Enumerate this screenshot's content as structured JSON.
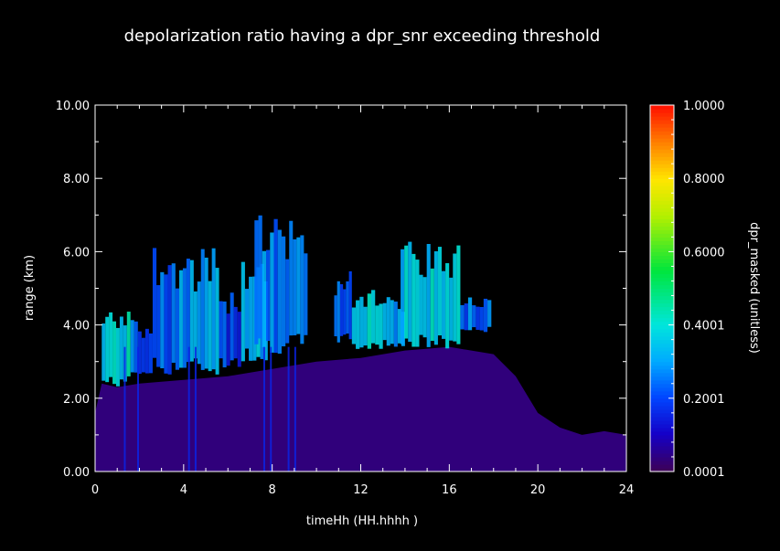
{
  "chart_data": {
    "type": "heatmap",
    "title": "depolarization ratio having a dpr_snr exceeding threshold",
    "xlabel": "timeHh (HH.hhhh )",
    "ylabel": "range (km)",
    "xlim": [
      0,
      24
    ],
    "ylim": [
      0,
      10
    ],
    "x_ticks": [
      "0",
      "4",
      "8",
      "12",
      "16",
      "20",
      "24"
    ],
    "y_ticks": [
      "0.00",
      "2.00",
      "4.00",
      "6.00",
      "8.00",
      "10.00"
    ],
    "colorbar": {
      "label": "dpr_masked (unitless)",
      "range": [
        0.0001,
        1.0
      ],
      "ticks": [
        "0.0001",
        "0.2001",
        "0.4001",
        "0.6000",
        "0.8000",
        "1.0000"
      ],
      "colormap": "rainbow (purple-blue-cyan-green-yellow-red)"
    },
    "background_layer": {
      "description": "low-depolarization boundary layer",
      "value": 0.03,
      "top_km": [
        [
          0,
          1.6
        ],
        [
          0.3,
          2.4
        ],
        [
          1,
          2.3
        ],
        [
          2,
          2.4
        ],
        [
          4,
          2.5
        ],
        [
          6,
          2.6
        ],
        [
          8,
          2.8
        ],
        [
          10,
          3.0
        ],
        [
          12,
          3.1
        ],
        [
          14,
          3.3
        ],
        [
          16,
          3.4
        ],
        [
          18,
          3.2
        ],
        [
          19,
          2.6
        ],
        [
          20,
          1.6
        ],
        [
          21,
          1.2
        ],
        [
          22,
          1.0
        ],
        [
          23,
          1.1
        ],
        [
          24,
          1.0
        ]
      ]
    },
    "cloud_features": [
      {
        "x_start": 0.3,
        "x_end": 1.6,
        "y_bottom": 2.3,
        "y_top": 4.4,
        "value": 0.38
      },
      {
        "x_start": 1.6,
        "x_end": 2.6,
        "y_bottom": 2.6,
        "y_top": 4.2,
        "value": 0.22
      },
      {
        "x_start": 2.6,
        "x_end": 3.8,
        "y_bottom": 2.6,
        "y_top": 6.2,
        "value": 0.24
      },
      {
        "x_start": 3.8,
        "x_end": 5.6,
        "y_bottom": 2.6,
        "y_top": 6.1,
        "value": 0.28
      },
      {
        "x_start": 5.6,
        "x_end": 6.6,
        "y_bottom": 2.8,
        "y_top": 5.0,
        "value": 0.2
      },
      {
        "x_start": 6.6,
        "x_end": 7.8,
        "y_bottom": 3.0,
        "y_top": 5.8,
        "value": 0.34
      },
      {
        "x_start": 7.2,
        "x_end": 8.6,
        "y_bottom": 3.2,
        "y_top": 7.0,
        "value": 0.25
      },
      {
        "x_start": 8.6,
        "x_end": 9.6,
        "y_bottom": 3.2,
        "y_top": 7.0,
        "value": 0.24
      },
      {
        "x_start": 10.8,
        "x_end": 11.6,
        "y_bottom": 3.5,
        "y_top": 5.5,
        "value": 0.2
      },
      {
        "x_start": 11.6,
        "x_end": 13.0,
        "y_bottom": 3.3,
        "y_top": 5.1,
        "value": 0.4
      },
      {
        "x_start": 13.0,
        "x_end": 14.0,
        "y_bottom": 3.4,
        "y_top": 4.8,
        "value": 0.32
      },
      {
        "x_start": 13.8,
        "x_end": 16.5,
        "y_bottom": 3.3,
        "y_top": 6.3,
        "value": 0.36
      },
      {
        "x_start": 16.5,
        "x_end": 17.9,
        "y_bottom": 3.8,
        "y_top": 4.8,
        "value": 0.24
      }
    ],
    "vertical_streaks_hours": [
      1.3,
      1.9,
      4.2,
      4.5,
      7.6,
      7.9,
      8.7,
      9.0
    ]
  }
}
